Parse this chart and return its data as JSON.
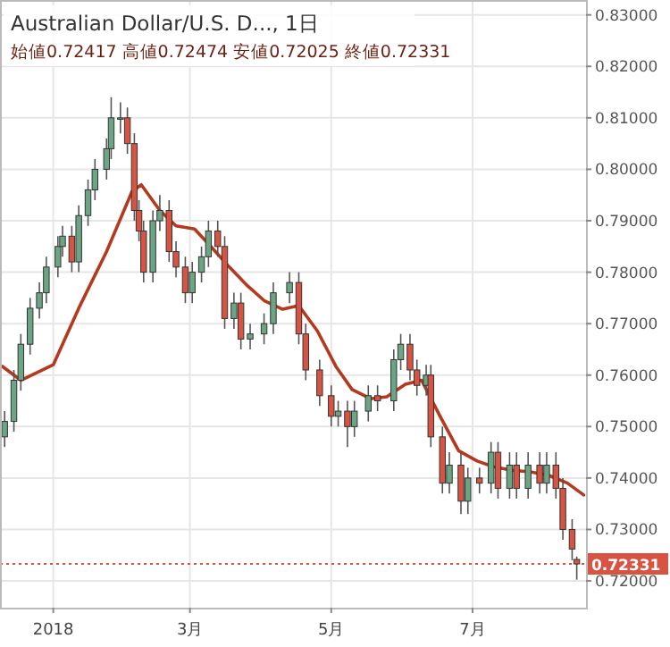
{
  "chart_data": {
    "type": "candlestick",
    "title": "Australian Dollar/U.S. D..., 1日",
    "subtitle": "始値0.72417 高値0.72474 安値0.72025 終値0.72331",
    "x": [
      "2017-12-11",
      "2017-12-15",
      "2017-12-18",
      "2017-12-22",
      "2017-12-26",
      "2017-12-29",
      "2018-01-03",
      "2018-01-05",
      "2018-01-09",
      "2018-01-12",
      "2018-01-16",
      "2018-01-19",
      "2018-01-24",
      "2018-01-26",
      "2018-01-30",
      "2018-02-02",
      "2018-02-05",
      "2018-02-07",
      "2018-02-09",
      "2018-02-13",
      "2018-02-16",
      "2018-02-20",
      "2018-02-23",
      "2018-02-27",
      "2018-03-02",
      "2018-03-06",
      "2018-03-09",
      "2018-03-13",
      "2018-03-16",
      "2018-03-20",
      "2018-03-23",
      "2018-03-27",
      "2018-04-02",
      "2018-04-06",
      "2018-04-13",
      "2018-04-17",
      "2018-04-20",
      "2018-04-26",
      "2018-05-01",
      "2018-05-04",
      "2018-05-08",
      "2018-05-11",
      "2018-05-17",
      "2018-05-21",
      "2018-05-28",
      "2018-05-31",
      "2018-06-04",
      "2018-06-07",
      "2018-06-11",
      "2018-06-13",
      "2018-06-18",
      "2018-06-21",
      "2018-06-26",
      "2018-06-29",
      "2018-07-04",
      "2018-07-09",
      "2018-07-12",
      "2018-07-17",
      "2018-07-20",
      "2018-07-25",
      "2018-07-30",
      "2018-08-02",
      "2018-08-06",
      "2018-08-09",
      "2018-08-13",
      "2018-08-15"
    ],
    "ohlc": [
      [
        0.748,
        0.753,
        0.746,
        0.751
      ],
      [
        0.751,
        0.761,
        0.749,
        0.759
      ],
      [
        0.759,
        0.768,
        0.757,
        0.766
      ],
      [
        0.766,
        0.775,
        0.764,
        0.773
      ],
      [
        0.773,
        0.778,
        0.771,
        0.776
      ],
      [
        0.776,
        0.783,
        0.774,
        0.781
      ],
      [
        0.781,
        0.787,
        0.779,
        0.785
      ],
      [
        0.785,
        0.789,
        0.783,
        0.787
      ],
      [
        0.787,
        0.789,
        0.78,
        0.782
      ],
      [
        0.782,
        0.793,
        0.78,
        0.791
      ],
      [
        0.791,
        0.798,
        0.789,
        0.796
      ],
      [
        0.796,
        0.802,
        0.794,
        0.8
      ],
      [
        0.8,
        0.806,
        0.798,
        0.804
      ],
      [
        0.804,
        0.814,
        0.802,
        0.81
      ],
      [
        0.81,
        0.813,
        0.807,
        0.81
      ],
      [
        0.81,
        0.812,
        0.803,
        0.805
      ],
      [
        0.805,
        0.807,
        0.79,
        0.792
      ],
      [
        0.792,
        0.794,
        0.786,
        0.788
      ],
      [
        0.788,
        0.79,
        0.778,
        0.78
      ],
      [
        0.78,
        0.792,
        0.778,
        0.79
      ],
      [
        0.79,
        0.795,
        0.788,
        0.792
      ],
      [
        0.792,
        0.794,
        0.782,
        0.784
      ],
      [
        0.784,
        0.786,
        0.779,
        0.781
      ],
      [
        0.781,
        0.783,
        0.774,
        0.776
      ],
      [
        0.776,
        0.782,
        0.774,
        0.78
      ],
      [
        0.78,
        0.785,
        0.778,
        0.783
      ],
      [
        0.783,
        0.79,
        0.781,
        0.788
      ],
      [
        0.788,
        0.79,
        0.783,
        0.785
      ],
      [
        0.785,
        0.787,
        0.769,
        0.771
      ],
      [
        0.771,
        0.776,
        0.769,
        0.774
      ],
      [
        0.774,
        0.776,
        0.765,
        0.767
      ],
      [
        0.767,
        0.77,
        0.765,
        0.768
      ],
      [
        0.768,
        0.772,
        0.766,
        0.77
      ],
      [
        0.77,
        0.778,
        0.768,
        0.776
      ],
      [
        0.776,
        0.78,
        0.774,
        0.778
      ],
      [
        0.778,
        0.78,
        0.766,
        0.768
      ],
      [
        0.768,
        0.77,
        0.759,
        0.761
      ],
      [
        0.761,
        0.763,
        0.754,
        0.756
      ],
      [
        0.756,
        0.758,
        0.75,
        0.752
      ],
      [
        0.752,
        0.755,
        0.75,
        0.753
      ],
      [
        0.753,
        0.755,
        0.746,
        0.75
      ],
      [
        0.75,
        0.755,
        0.748,
        0.753
      ],
      [
        0.753,
        0.758,
        0.751,
        0.756
      ],
      [
        0.756,
        0.758,
        0.753,
        0.755
      ],
      [
        0.755,
        0.765,
        0.753,
        0.763
      ],
      [
        0.763,
        0.768,
        0.761,
        0.766
      ],
      [
        0.766,
        0.768,
        0.759,
        0.761
      ],
      [
        0.761,
        0.763,
        0.756,
        0.758
      ],
      [
        0.758,
        0.762,
        0.756,
        0.76
      ],
      [
        0.76,
        0.762,
        0.746,
        0.748
      ],
      [
        0.748,
        0.75,
        0.737,
        0.739
      ],
      [
        0.739,
        0.745,
        0.737,
        0.7425
      ],
      [
        0.7425,
        0.745,
        0.733,
        0.7355
      ],
      [
        0.7355,
        0.742,
        0.733,
        0.74
      ],
      [
        0.74,
        0.742,
        0.737,
        0.739
      ],
      [
        0.739,
        0.747,
        0.737,
        0.745
      ],
      [
        0.745,
        0.747,
        0.736,
        0.738
      ],
      [
        0.738,
        0.745,
        0.736,
        0.7425
      ],
      [
        0.7425,
        0.745,
        0.736,
        0.738
      ],
      [
        0.738,
        0.745,
        0.736,
        0.7425
      ],
      [
        0.7425,
        0.745,
        0.737,
        0.739
      ],
      [
        0.739,
        0.745,
        0.737,
        0.7425
      ],
      [
        0.7425,
        0.745,
        0.736,
        0.738
      ],
      [
        0.738,
        0.74,
        0.728,
        0.73
      ],
      [
        0.73,
        0.732,
        0.724,
        0.7262
      ],
      [
        0.72417,
        0.72474,
        0.72025,
        0.72331
      ]
    ],
    "colors": [
      "#6ba583",
      "#6ba583",
      "#6ba583",
      "#6ba583",
      "#6ba583",
      "#6ba583",
      "#6ba583",
      "#6ba583",
      "#d75442",
      "#6ba583",
      "#6ba583",
      "#6ba583",
      "#6ba583",
      "#6ba583",
      "#6ba583",
      "#d75442",
      "#d75442",
      "#d75442",
      "#d75442",
      "#6ba583",
      "#6ba583",
      "#d75442",
      "#d75442",
      "#d75442",
      "#6ba583",
      "#6ba583",
      "#6ba583",
      "#d75442",
      "#d75442",
      "#6ba583",
      "#d75442",
      "#6ba583",
      "#6ba583",
      "#6ba583",
      "#6ba583",
      "#d75442",
      "#d75442",
      "#d75442",
      "#d75442",
      "#6ba583",
      "#d75442",
      "#6ba583",
      "#6ba583",
      "#d75442",
      "#6ba583",
      "#6ba583",
      "#d75442",
      "#d75442",
      "#6ba583",
      "#d75442",
      "#d75442",
      "#6ba583",
      "#d75442",
      "#6ba583",
      "#d75442",
      "#6ba583",
      "#d75442",
      "#6ba583",
      "#d75442",
      "#6ba583",
      "#d75442",
      "#6ba583",
      "#d75442",
      "#d75442",
      "#d75442",
      "#d75442"
    ],
    "series": [
      {
        "type": "line",
        "color": "#b5391e",
        "x": [
          "2017-12-10",
          "2017-12-18",
          "2018-01-01",
          "2018-01-12",
          "2018-01-24",
          "2018-02-04",
          "2018-02-08",
          "2018-02-16",
          "2018-02-23",
          "2018-03-03",
          "2018-03-10",
          "2018-03-18",
          "2018-03-26",
          "2018-04-02",
          "2018-04-10",
          "2018-04-17",
          "2018-04-25",
          "2018-05-03",
          "2018-05-10",
          "2018-05-18",
          "2018-05-25",
          "2018-06-02",
          "2018-06-09",
          "2018-06-17",
          "2018-06-25",
          "2018-07-03",
          "2018-07-10",
          "2018-07-18",
          "2018-07-26",
          "2018-08-03",
          "2018-08-11",
          "2018-08-18"
        ],
        "values": [
          0.7617,
          0.759,
          0.762,
          0.773,
          0.784,
          0.7957,
          0.797,
          0.792,
          0.789,
          0.7884,
          0.785,
          0.781,
          0.7773,
          0.7745,
          0.7728,
          0.7735,
          0.7686,
          0.7617,
          0.7572,
          0.7554,
          0.7558,
          0.7582,
          0.759,
          0.752,
          0.7453,
          0.7433,
          0.7422,
          0.7415,
          0.7412,
          0.7405,
          0.739,
          0.7367
        ]
      }
    ],
    "xlim": [
      "2017-12-09",
      "2018-08-19"
    ],
    "xticks": [
      {
        "value": "2018-01-01",
        "label": "2018"
      },
      {
        "value": "2018-03-01",
        "label": "3月"
      },
      {
        "value": "2018-05-01",
        "label": "5月"
      },
      {
        "value": "2018-07-01",
        "label": "7月"
      }
    ],
    "ylim": [
      0.7148,
      0.8329
    ],
    "yticks": [
      {
        "value": 0.72,
        "label": "0.72000"
      },
      {
        "value": 0.73,
        "label": "0.73000"
      },
      {
        "value": 0.74,
        "label": "0.74000"
      },
      {
        "value": 0.75,
        "label": "0.75000"
      },
      {
        "value": 0.76,
        "label": "0.76000"
      },
      {
        "value": 0.77,
        "label": "0.77000"
      },
      {
        "value": 0.78,
        "label": "0.78000"
      },
      {
        "value": 0.79,
        "label": "0.79000"
      },
      {
        "value": 0.8,
        "label": "0.80000"
      },
      {
        "value": 0.81,
        "label": "0.81000"
      },
      {
        "value": 0.82,
        "label": "0.82000"
      },
      {
        "value": 0.83,
        "label": "0.83000"
      }
    ],
    "ref_lines": [
      {
        "axis": "y",
        "value": 0.72331,
        "label": "0.72331",
        "color": "#d75442",
        "line_style": "dotted"
      }
    ],
    "grid": true
  }
}
